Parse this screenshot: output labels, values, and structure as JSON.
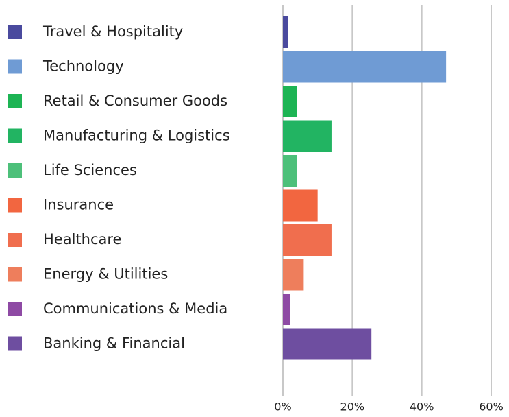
{
  "chart_data": {
    "type": "barh",
    "categories": [
      "Travel & Hospitality",
      "Technology",
      "Retail & Consumer Goods",
      "Manufacturing & Logistics",
      "Life Sciences",
      "Insurance",
      "Healthcare",
      "Energy & Utilities",
      "Communications & Media",
      "Banking & Financial"
    ],
    "values": [
      1.5,
      47,
      4,
      14,
      4,
      10,
      14,
      6,
      2,
      25.5
    ],
    "colors": [
      "#4a4a9e",
      "#6f9bd4",
      "#1db454",
      "#22b462",
      "#4dc07a",
      "#f26640",
      "#f06e4e",
      "#ee7e5c",
      "#8e4aa4",
      "#6e4ea0"
    ],
    "xlim": [
      0,
      60
    ],
    "xticks": [
      {
        "value": 0,
        "label": "0%"
      },
      {
        "value": 20,
        "label": "20%"
      },
      {
        "value": 40,
        "label": "40%"
      },
      {
        "value": 60,
        "label": "60%"
      }
    ],
    "grid": true
  }
}
